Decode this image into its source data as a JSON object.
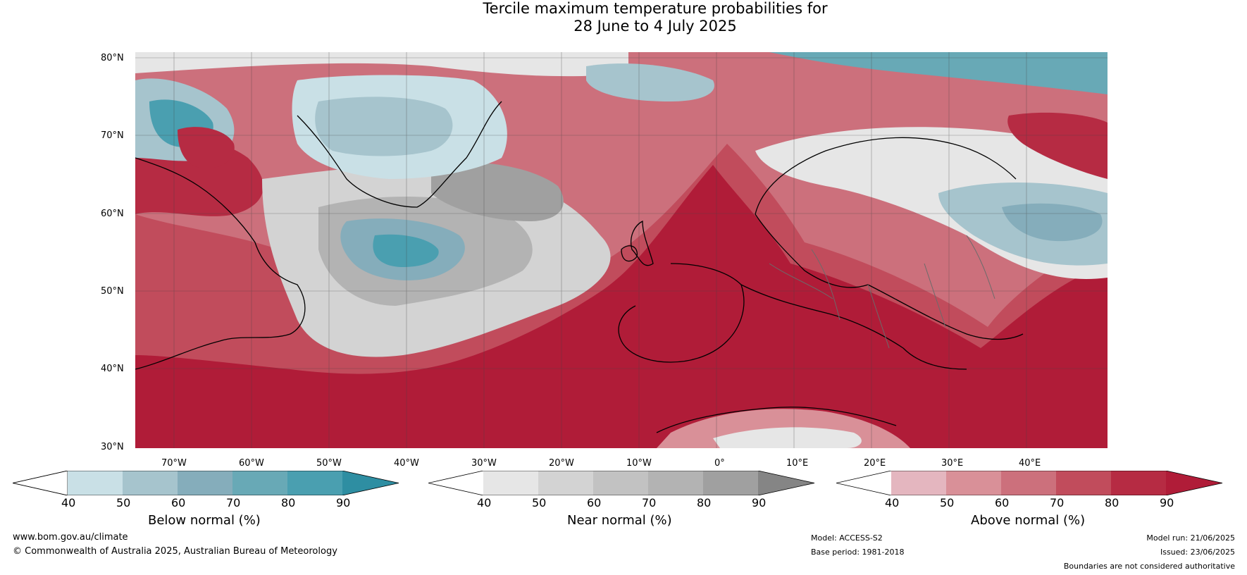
{
  "title": {
    "line1": "Tercile maximum temperature probabilities for",
    "line2": "28 June to 4 July 2025"
  },
  "map": {
    "latitude_labels": [
      "80°N",
      "70°N",
      "60°N",
      "50°N",
      "40°N",
      "30°N"
    ],
    "longitude_labels": [
      "70°W",
      "60°W",
      "50°W",
      "40°W",
      "30°W",
      "20°W",
      "10°W",
      "0°",
      "10°E",
      "20°E",
      "30°E",
      "40°E"
    ]
  },
  "legends": [
    {
      "title": "Below normal (%)",
      "ticks": [
        "40",
        "50",
        "60",
        "70",
        "80",
        "90"
      ],
      "colors": [
        "#c9e0e6",
        "#a6c4cd",
        "#85adbb",
        "#68a9b6",
        "#4a9fb0",
        "#2e8ea2"
      ]
    },
    {
      "title": "Near normal (%)",
      "ticks": [
        "40",
        "50",
        "60",
        "70",
        "80",
        "90"
      ],
      "colors": [
        "#e6e6e6",
        "#d3d3d3",
        "#c2c2c2",
        "#b3b3b3",
        "#a0a0a0",
        "#858585"
      ]
    },
    {
      "title": "Above normal (%)",
      "ticks": [
        "40",
        "50",
        "60",
        "70",
        "80",
        "90"
      ],
      "colors": [
        "#e4b6bf",
        "#d99098",
        "#cc707c",
        "#c14c5c",
        "#b62b43",
        "#b01c38"
      ]
    }
  ],
  "footer": {
    "website": "www.bom.gov.au/climate",
    "copyright": "© Commonwealth of Australia 2025, Australian Bureau of Meteorology",
    "model": "Model: ACCESS-S2",
    "base_period": "Base period: 1981-2018",
    "model_run": "Model run: 21/06/2025",
    "issued": "Issued: 23/06/2025",
    "disclaimer": "Boundaries are not considered authoritative"
  }
}
